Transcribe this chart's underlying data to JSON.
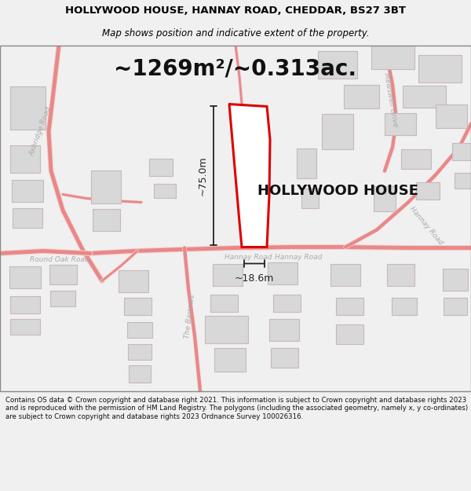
{
  "title": "HOLLYWOOD HOUSE, HANNAY ROAD, CHEDDAR, BS27 3BT",
  "subtitle": "Map shows position and indicative extent of the property.",
  "area_label": "~1269m²/~0.313ac.",
  "property_label": "HOLLYWOOD HOUSE",
  "height_label": "~75.0m",
  "width_label": "~18.6m",
  "footer": "Contains OS data © Crown copyright and database right 2021. This information is subject to Crown copyright and database rights 2023 and is reproduced with the permission of HM Land Registry. The polygons (including the associated geometry, namely x, y co-ordinates) are subject to Crown copyright and database rights 2023 Ordnance Survey 100026316.",
  "bg_color": "#f0f0f0",
  "map_bg": "#ffffff",
  "property_outline_color": "#dd0000",
  "road_color": "#e88888",
  "building_color": "#d8d8d8",
  "building_outline": "#c8b8b8",
  "road_label_color": "#aaaaaa",
  "dim_line_color": "#222222",
  "title_color": "#000000",
  "footer_color": "#111111",
  "map_border_color": "#888888",
  "title_fontsize": 9.5,
  "subtitle_fontsize": 8.5,
  "area_fontsize": 20,
  "prop_label_fontsize": 13,
  "dim_fontsize": 9,
  "road_label_fontsize": 6.5,
  "footer_fontsize": 6.2
}
